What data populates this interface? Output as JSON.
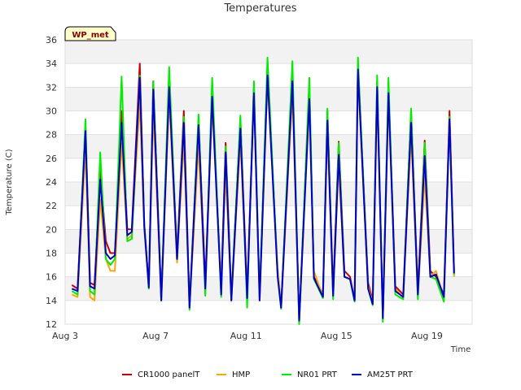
{
  "chart_data": {
    "type": "line",
    "title": "Temperatures",
    "xlabel": "Time",
    "ylabel": "Temperature (C)",
    "badge": "WP_met",
    "ylim": [
      12,
      36
    ],
    "yticks": [
      12,
      14,
      16,
      18,
      20,
      22,
      24,
      26,
      28,
      30,
      32,
      34,
      36
    ],
    "xlim": [
      3,
      21
    ],
    "xticks": [
      {
        "label": "Aug 3",
        "day": 3
      },
      {
        "label": "Aug 7",
        "day": 7
      },
      {
        "label": "Aug 11",
        "day": 11
      },
      {
        "label": "Aug 15",
        "day": 15
      },
      {
        "label": "Aug 19",
        "day": 19
      }
    ],
    "x_unit": "day of August",
    "series": [
      {
        "name": "CR1000 panelT",
        "color": "#cc0000",
        "x": [
          3.3,
          3.55,
          3.9,
          4.1,
          4.3,
          4.55,
          4.8,
          5.0,
          5.2,
          5.5,
          5.75,
          5.95,
          6.3,
          6.5,
          6.7,
          6.9,
          7.25,
          7.6,
          7.95,
          8.25,
          8.5,
          8.9,
          9.2,
          9.5,
          9.9,
          10.1,
          10.35,
          10.75,
          11.05,
          11.35,
          11.6,
          11.95,
          12.4,
          12.55,
          13.05,
          13.35,
          13.8,
          14.0,
          14.4,
          14.6,
          14.85,
          15.1,
          15.35,
          15.6,
          15.8,
          15.95,
          16.4,
          16.6,
          16.8,
          17.05,
          17.3,
          17.6,
          17.95,
          18.3,
          18.6,
          18.9,
          19.15,
          19.4,
          19.75,
          20.0,
          20.2
        ],
        "values": [
          15.3,
          15.0,
          28.8,
          15.5,
          15.3,
          25.0,
          19.0,
          18.0,
          18.0,
          30.0,
          20.0,
          20.0,
          34.0,
          20.5,
          15.2,
          32.5,
          14.2,
          32.8,
          17.8,
          30.0,
          13.6,
          29.3,
          15.4,
          31.5,
          15.0,
          27.3,
          14.2,
          29.3,
          14.5,
          32.0,
          14.3,
          33.7,
          16.2,
          13.5,
          33.0,
          12.3,
          32.0,
          16.0,
          14.5,
          30.0,
          14.8,
          27.4,
          16.5,
          16.0,
          14.0,
          34.0,
          15.5,
          14.0,
          32.5,
          12.5,
          32.0,
          15.2,
          14.5,
          30.0,
          14.7,
          27.5,
          16.5,
          16.0,
          14.5,
          30.0,
          16.5
        ]
      },
      {
        "name": "HMP",
        "color": "#ffa500",
        "x": [
          3.3,
          3.55,
          3.9,
          4.1,
          4.3,
          4.55,
          4.8,
          5.0,
          5.2,
          5.5,
          5.75,
          5.95,
          6.3,
          6.5,
          6.7,
          6.9,
          7.25,
          7.6,
          7.95,
          8.25,
          8.5,
          8.9,
          9.2,
          9.5,
          9.9,
          10.1,
          10.35,
          10.75,
          11.05,
          11.35,
          11.6,
          11.95,
          12.4,
          12.55,
          13.05,
          13.35,
          13.8,
          14.0,
          14.4,
          14.6,
          14.85,
          15.1,
          15.35,
          15.6,
          15.8,
          15.95,
          16.4,
          16.6,
          16.8,
          17.05,
          17.3,
          17.6,
          17.95,
          18.3,
          18.6,
          18.9,
          19.15,
          19.4,
          19.75,
          20.0,
          20.2
        ],
        "values": [
          14.5,
          14.3,
          26.8,
          14.3,
          14.0,
          22.5,
          17.5,
          16.5,
          16.5,
          27.3,
          19.2,
          19.5,
          30.7,
          20.0,
          15.0,
          30.0,
          14.0,
          31.0,
          17.2,
          27.5,
          13.4,
          27.0,
          14.8,
          30.5,
          15.2,
          24.8,
          14.0,
          27.5,
          14.3,
          31.5,
          14.0,
          32.5,
          16.8,
          13.3,
          31.5,
          12.2,
          30.8,
          16.5,
          14.3,
          28.5,
          14.5,
          25.5,
          16.0,
          15.8,
          14.0,
          33.0,
          15.2,
          13.8,
          31.5,
          12.4,
          31.0,
          15.0,
          14.2,
          28.0,
          14.2,
          24.5,
          16.0,
          16.5,
          14.2,
          29.0,
          16.0
        ]
      },
      {
        "name": "NR01 PRT",
        "color": "#00ee00",
        "x": [
          3.3,
          3.55,
          3.9,
          4.1,
          4.3,
          4.55,
          4.8,
          5.0,
          5.2,
          5.5,
          5.75,
          5.95,
          6.3,
          6.5,
          6.7,
          6.9,
          7.25,
          7.6,
          7.95,
          8.25,
          8.5,
          8.9,
          9.2,
          9.5,
          9.9,
          10.1,
          10.35,
          10.75,
          11.05,
          11.35,
          11.6,
          11.95,
          12.4,
          12.55,
          13.05,
          13.35,
          13.8,
          14.0,
          14.4,
          14.6,
          14.85,
          15.1,
          15.35,
          15.6,
          15.8,
          15.95,
          16.4,
          16.6,
          16.8,
          17.05,
          17.3,
          17.6,
          17.95,
          18.3,
          18.6,
          18.9,
          19.15,
          19.4,
          19.75,
          20.0,
          20.2
        ],
        "values": [
          14.8,
          14.5,
          29.3,
          14.8,
          14.5,
          26.5,
          17.5,
          17.0,
          17.5,
          32.9,
          19.0,
          19.2,
          33.0,
          20.5,
          15.0,
          32.5,
          14.0,
          33.7,
          17.5,
          29.5,
          13.2,
          29.7,
          14.4,
          32.8,
          14.3,
          27.0,
          14.0,
          29.6,
          13.4,
          32.5,
          14.2,
          34.5,
          16.0,
          13.3,
          34.2,
          12.0,
          32.8,
          15.8,
          14.2,
          30.2,
          14.1,
          27.3,
          16.0,
          15.8,
          13.9,
          34.5,
          15.0,
          13.6,
          33.0,
          12.2,
          32.8,
          14.5,
          14.1,
          30.2,
          14.1,
          27.3,
          16.0,
          15.8,
          13.9,
          29.5,
          16.2
        ]
      },
      {
        "name": "AM25T PRT",
        "color": "#0000cc",
        "x": [
          3.3,
          3.55,
          3.9,
          4.1,
          4.3,
          4.55,
          4.8,
          5.0,
          5.2,
          5.5,
          5.75,
          5.95,
          6.3,
          6.5,
          6.7,
          6.9,
          7.25,
          7.6,
          7.95,
          8.25,
          8.5,
          8.9,
          9.2,
          9.5,
          9.9,
          10.1,
          10.35,
          10.75,
          11.05,
          11.35,
          11.6,
          11.95,
          12.4,
          12.55,
          13.05,
          13.35,
          13.8,
          14.0,
          14.4,
          14.6,
          14.85,
          15.1,
          15.35,
          15.6,
          15.8,
          15.95,
          16.4,
          16.6,
          16.8,
          17.05,
          17.3,
          17.6,
          17.95,
          18.3,
          18.6,
          18.9,
          19.15,
          19.4,
          19.75,
          20.0,
          20.2
        ],
        "values": [
          15.0,
          14.8,
          28.3,
          15.2,
          15.0,
          24.2,
          18.0,
          17.5,
          17.8,
          29.0,
          19.5,
          19.8,
          32.8,
          20.3,
          15.1,
          31.8,
          14.0,
          32.0,
          17.5,
          29.0,
          13.4,
          28.8,
          15.0,
          31.2,
          14.5,
          26.5,
          14.0,
          28.5,
          14.2,
          31.5,
          14.0,
          33.0,
          16.0,
          13.4,
          32.5,
          12.3,
          31.0,
          15.9,
          14.3,
          29.2,
          14.4,
          26.3,
          16.0,
          15.8,
          14.0,
          33.5,
          15.0,
          13.7,
          32.0,
          12.5,
          31.5,
          14.8,
          14.3,
          29.0,
          14.5,
          26.2,
          16.0,
          16.2,
          14.3,
          29.3,
          16.3
        ]
      }
    ]
  }
}
